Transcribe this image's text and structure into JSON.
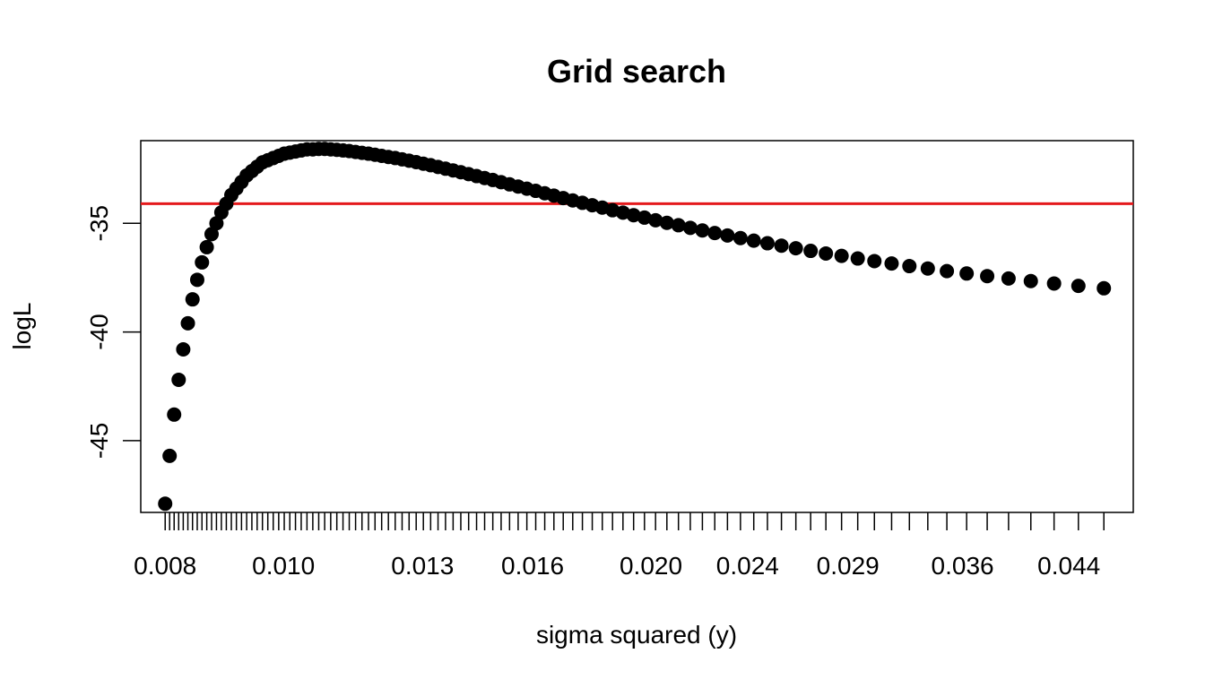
{
  "chart_data": {
    "type": "scatter",
    "title": "Grid search",
    "xlabel": "sigma squared (y)",
    "ylabel": "logL",
    "x_scale": "log",
    "xlim": [
      0.00764,
      0.04968
    ],
    "ylim": [
      -48.3,
      -31.2
    ],
    "x_tick_labels": [
      "0.008",
      "0.010",
      "0.013",
      "0.016",
      "0.020",
      "0.024",
      "0.029",
      "0.036",
      "0.044"
    ],
    "x_tick_label_positions": [
      0.008,
      0.01,
      0.013,
      0.016,
      0.02,
      0.024,
      0.029,
      0.036,
      0.044
    ],
    "y_ticks": [
      -35,
      -40,
      -45
    ],
    "y_tick_labels": [
      "-35",
      "-40",
      "-45"
    ],
    "hline": {
      "y": -34.1,
      "color": "#e41a1c"
    },
    "point_color": "#000000",
    "points": {
      "x_start": 0.008,
      "x_end": 0.047,
      "count": 100,
      "spacing": "reciprocal",
      "y": [
        -47.9,
        -45.7,
        -43.8,
        -42.2,
        -40.8,
        -39.6,
        -38.5,
        -37.6,
        -36.8,
        -36.1,
        -35.5,
        -35.0,
        -34.5,
        -34.1,
        -33.7,
        -33.4,
        -33.1,
        -32.8,
        -32.6,
        -32.4,
        -32.2,
        -32.1,
        -32.0,
        -31.9,
        -31.8,
        -31.75,
        -31.7,
        -31.65,
        -31.6,
        -31.6,
        -31.58,
        -31.58,
        -31.6,
        -31.62,
        -31.65,
        -31.68,
        -31.72,
        -31.76,
        -31.8,
        -31.85,
        -31.9,
        -31.95,
        -32.0,
        -32.06,
        -32.12,
        -32.19,
        -32.26,
        -32.33,
        -32.41,
        -32.49,
        -32.57,
        -32.65,
        -32.74,
        -32.83,
        -32.92,
        -33.01,
        -33.11,
        -33.21,
        -33.31,
        -33.41,
        -33.51,
        -33.62,
        -33.73,
        -33.84,
        -33.95,
        -34.06,
        -34.17,
        -34.28,
        -34.4,
        -34.51,
        -34.63,
        -34.74,
        -34.86,
        -34.98,
        -35.09,
        -35.21,
        -35.33,
        -35.45,
        -35.56,
        -35.68,
        -35.8,
        -35.92,
        -36.03,
        -36.15,
        -36.27,
        -36.39,
        -36.5,
        -36.62,
        -36.74,
        -36.85,
        -36.97,
        -37.08,
        -37.2,
        -37.31,
        -37.43,
        -37.54,
        -37.66,
        -37.77,
        -37.88,
        -37.99
      ]
    }
  }
}
